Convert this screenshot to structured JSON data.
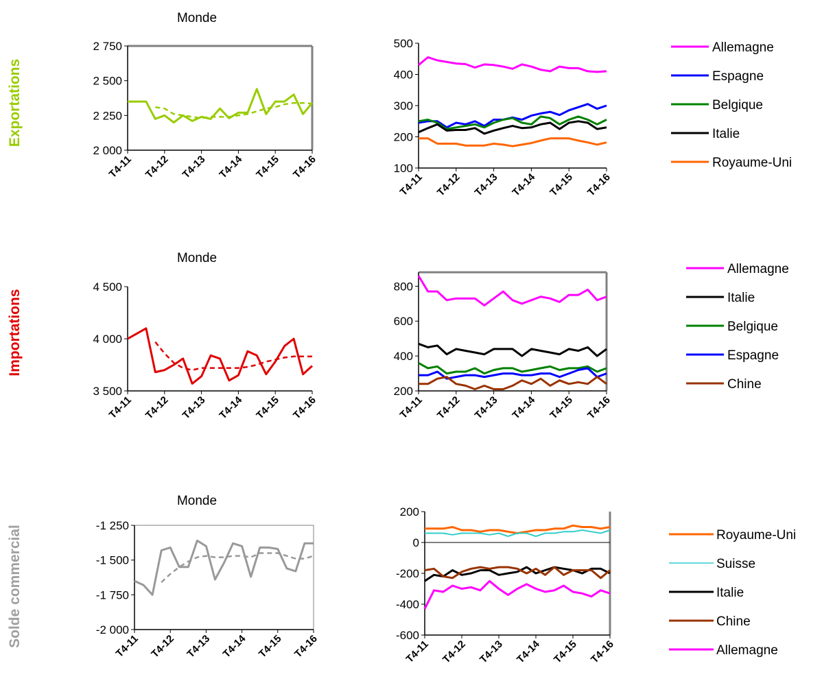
{
  "row_titles": {
    "exportations": "Exportations",
    "importations": "Importations",
    "solde": "Solde commercial"
  },
  "colors": {
    "exportations": "#99cc00",
    "importations": "#e00000",
    "solde": "#999999",
    "Allemagne": "#ff00ff",
    "Espagne": "#0000ff",
    "Belgique": "#008000",
    "Italie": "#000000",
    "Royaume-Uni": "#ff6600",
    "Chine": "#993300",
    "Suisse": "#33cccc"
  },
  "chart_data": [
    {
      "id": "exp-monde",
      "type": "line",
      "title": "Monde",
      "xlabel": "",
      "ylabel": "",
      "xticks": [
        "T4-11",
        "T4-12",
        "T4-13",
        "T4-14",
        "T4-15",
        "T4-16"
      ],
      "ylim": [
        2000,
        2750
      ],
      "yticks": [
        "2 000",
        "2 250",
        "2 500",
        "2 750"
      ],
      "ytick_values": [
        2000,
        2250,
        2500,
        2750
      ],
      "series": [
        {
          "style": "solid",
          "values": [
            2350,
            2350,
            2350,
            2225,
            2250,
            2200,
            2250,
            2210,
            2240,
            2225,
            2300,
            2230,
            2270,
            2270,
            2440,
            2260,
            2350,
            2350,
            2400,
            2260,
            2340
          ]
        },
        {
          "style": "dashed",
          "values": [
            null,
            null,
            null,
            2310,
            2300,
            2260,
            2250,
            2240,
            2230,
            2240,
            2240,
            2240,
            2250,
            2260,
            2280,
            2300,
            2310,
            2330,
            2340,
            2340,
            2335
          ]
        }
      ]
    },
    {
      "id": "exp-pays",
      "type": "line",
      "title": "",
      "xticks": [
        "T4-11",
        "T4-12",
        "T4-13",
        "T4-14",
        "T4-15",
        "T4-16"
      ],
      "ylim": [
        100,
        500
      ],
      "yticks": [
        "100",
        "200",
        "300",
        "400",
        "500"
      ],
      "ytick_values": [
        100,
        200,
        300,
        400,
        500
      ],
      "series": [
        {
          "name": "Allemagne",
          "values": [
            430,
            455,
            445,
            440,
            435,
            433,
            422,
            432,
            430,
            425,
            418,
            432,
            425,
            415,
            410,
            425,
            420,
            420,
            410,
            408,
            410
          ]
        },
        {
          "name": "Espagne",
          "values": [
            245,
            250,
            250,
            230,
            245,
            240,
            250,
            235,
            255,
            255,
            262,
            255,
            268,
            275,
            280,
            270,
            285,
            295,
            305,
            290,
            300
          ]
        },
        {
          "name": "Belgique",
          "values": [
            250,
            255,
            245,
            225,
            230,
            235,
            240,
            230,
            245,
            255,
            260,
            245,
            240,
            265,
            260,
            240,
            255,
            265,
            255,
            240,
            255
          ]
        },
        {
          "name": "Italie",
          "values": [
            215,
            228,
            240,
            220,
            222,
            222,
            228,
            210,
            220,
            228,
            235,
            228,
            230,
            240,
            245,
            225,
            245,
            250,
            245,
            225,
            230
          ]
        },
        {
          "name": "Royaume-Uni",
          "values": [
            195,
            195,
            178,
            178,
            178,
            172,
            172,
            172,
            178,
            175,
            170,
            175,
            180,
            188,
            195,
            195,
            195,
            188,
            182,
            175,
            182
          ]
        }
      ]
    },
    {
      "id": "imp-monde",
      "type": "line",
      "title": "Monde",
      "xticks": [
        "T4-11",
        "T4-12",
        "T4-13",
        "T4-14",
        "T4-15",
        "T4-16"
      ],
      "ylim": [
        3500,
        4500
      ],
      "yticks": [
        "3 500",
        "4 000",
        "4 500"
      ],
      "ytick_values": [
        3500,
        4000,
        4500
      ],
      "series": [
        {
          "style": "solid",
          "values": [
            4000,
            4050,
            4100,
            3680,
            3700,
            3750,
            3810,
            3570,
            3640,
            3840,
            3810,
            3600,
            3650,
            3880,
            3840,
            3660,
            3780,
            3930,
            4000,
            3660,
            3740
          ]
        },
        {
          "style": "dashed",
          "values": [
            null,
            null,
            null,
            3970,
            3860,
            3770,
            3720,
            3700,
            3720,
            3720,
            3720,
            3720,
            3720,
            3730,
            3750,
            3780,
            3800,
            3820,
            3830,
            3830,
            3830
          ]
        }
      ]
    },
    {
      "id": "imp-pays",
      "type": "line",
      "title": "",
      "xticks": [
        "T4-11",
        "T4-12",
        "T4-13",
        "T4-14",
        "T4-15",
        "T4-16"
      ],
      "ylim": [
        200,
        880
      ],
      "yticks": [
        "200",
        "400",
        "600",
        "800"
      ],
      "ytick_values": [
        200,
        400,
        600,
        800
      ],
      "series": [
        {
          "name": "Allemagne",
          "values": [
            860,
            770,
            770,
            720,
            730,
            730,
            730,
            690,
            730,
            770,
            720,
            700,
            720,
            740,
            730,
            710,
            750,
            750,
            780,
            720,
            740
          ]
        },
        {
          "name": "Italie",
          "values": [
            470,
            450,
            460,
            410,
            440,
            430,
            420,
            410,
            440,
            440,
            440,
            400,
            440,
            430,
            420,
            410,
            440,
            430,
            450,
            400,
            440
          ]
        },
        {
          "name": "Belgique",
          "values": [
            360,
            330,
            340,
            300,
            310,
            310,
            330,
            300,
            320,
            330,
            330,
            310,
            320,
            330,
            340,
            320,
            330,
            330,
            340,
            310,
            330
          ]
        },
        {
          "name": "Espagne",
          "values": [
            290,
            290,
            310,
            270,
            280,
            290,
            290,
            280,
            290,
            300,
            300,
            290,
            290,
            300,
            300,
            280,
            300,
            320,
            330,
            280,
            300
          ]
        },
        {
          "name": "Chine",
          "values": [
            240,
            240,
            270,
            280,
            240,
            230,
            210,
            230,
            210,
            210,
            230,
            260,
            240,
            270,
            230,
            260,
            240,
            250,
            240,
            280,
            240
          ]
        }
      ]
    },
    {
      "id": "solde-monde",
      "type": "line",
      "title": "Monde",
      "xticks": [
        "T4-11",
        "T4-12",
        "T4-13",
        "T4-14",
        "T4-15",
        "T4-16"
      ],
      "ylim": [
        -2000,
        -1250
      ],
      "yticks": [
        "-2 000",
        "-1 750",
        "-1 500",
        "-1 250"
      ],
      "ytick_values": [
        -2000,
        -1750,
        -1500,
        -1250
      ],
      "series": [
        {
          "style": "solid",
          "values": [
            -1650,
            -1680,
            -1750,
            -1430,
            -1410,
            -1550,
            -1550,
            -1360,
            -1400,
            -1640,
            -1520,
            -1380,
            -1400,
            -1620,
            -1410,
            -1410,
            -1420,
            -1560,
            -1580,
            -1380,
            -1380
          ]
        },
        {
          "style": "dashed",
          "values": [
            null,
            null,
            null,
            -1660,
            -1600,
            -1550,
            -1510,
            -1480,
            -1470,
            -1480,
            -1480,
            -1470,
            -1470,
            -1480,
            -1450,
            -1450,
            -1450,
            -1470,
            -1490,
            -1490,
            -1470
          ]
        }
      ]
    },
    {
      "id": "solde-pays",
      "type": "line",
      "title": "",
      "xticks": [
        "T4-11",
        "T4-12",
        "T4-13",
        "T4-14",
        "T4-15",
        "T4-16"
      ],
      "ylim": [
        -600,
        200
      ],
      "yticks": [
        "-600",
        "-400",
        "-200",
        "0",
        "200"
      ],
      "ytick_values": [
        -600,
        -400,
        -200,
        0,
        200
      ],
      "series": [
        {
          "name": "Royaume-Uni",
          "values": [
            90,
            90,
            90,
            100,
            80,
            80,
            70,
            80,
            80,
            70,
            60,
            70,
            80,
            80,
            90,
            90,
            110,
            100,
            100,
            90,
            100
          ]
        },
        {
          "name": "Suisse",
          "values": [
            60,
            60,
            60,
            50,
            60,
            60,
            60,
            50,
            60,
            40,
            60,
            60,
            40,
            60,
            60,
            70,
            70,
            80,
            70,
            60,
            80
          ]
        },
        {
          "name": "Italie",
          "values": [
            -250,
            -210,
            -220,
            -180,
            -210,
            -200,
            -180,
            -180,
            -210,
            -200,
            -190,
            -160,
            -200,
            -180,
            -160,
            -170,
            -180,
            -200,
            -170,
            -170,
            -200
          ]
        },
        {
          "name": "Chine",
          "values": [
            -180,
            -170,
            -220,
            -230,
            -190,
            -170,
            -160,
            -170,
            -160,
            -160,
            -170,
            -200,
            -170,
            -210,
            -160,
            -210,
            -180,
            -180,
            -180,
            -230,
            -180
          ]
        },
        {
          "name": "Allemagne",
          "values": [
            -430,
            -310,
            -320,
            -280,
            -300,
            -290,
            -310,
            -250,
            -300,
            -340,
            -300,
            -270,
            -300,
            -320,
            -310,
            -280,
            -320,
            -330,
            -350,
            -310,
            -330
          ]
        }
      ]
    }
  ],
  "legends": {
    "exp": [
      "Allemagne",
      "Espagne",
      "Belgique",
      "Italie",
      "Royaume-Uni"
    ],
    "imp": [
      "Allemagne",
      "Italie",
      "Belgique",
      "Espagne",
      "Chine"
    ],
    "solde": [
      "Royaume-Uni",
      "Suisse",
      "Italie",
      "Chine",
      "Allemagne"
    ]
  }
}
